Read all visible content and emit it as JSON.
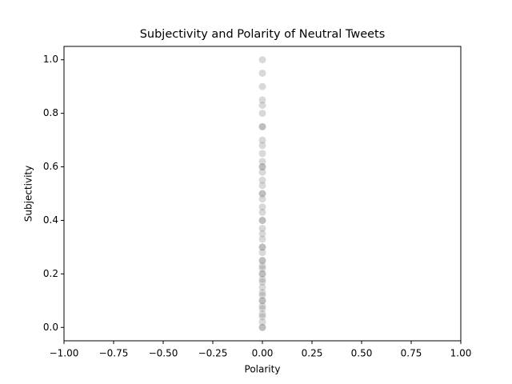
{
  "chart_data": {
    "type": "scatter",
    "title": "Subjectivity and Polarity of Neutral Tweets",
    "x_label": "Polarity",
    "y_label": "Subjectivity",
    "color": "#808080",
    "alpha": 0.3,
    "x": [
      0,
      0,
      0,
      0,
      0,
      0,
      0,
      0,
      0,
      0,
      0,
      0,
      0,
      0,
      0,
      0,
      0,
      0,
      0,
      0,
      0,
      0,
      0,
      0,
      0,
      0,
      0,
      0,
      0,
      0,
      0,
      0,
      0,
      0,
      0,
      0,
      0,
      0,
      0,
      0
    ],
    "y": [
      0,
      0.02,
      0.04,
      0.05,
      0.07,
      0.08,
      0.1,
      0.12,
      0.13,
      0.15,
      0.17,
      0.18,
      0.2,
      0.22,
      0.23,
      0.25,
      0.28,
      0.3,
      0.33,
      0.35,
      0.37,
      0.4,
      0.43,
      0.45,
      0.48,
      0.5,
      0.53,
      0.55,
      0.58,
      0.6,
      0.62,
      0.65,
      0.68,
      0.7,
      0.75,
      0.8,
      0.83,
      0.85,
      0.9,
      0.95
    ],
    "extra_y": [
      1.0,
      0.75,
      0.6,
      0.5,
      0.4,
      0.3,
      0.2,
      0.1,
      0.0,
      0.25
    ],
    "xlim": [
      -1.0,
      1.0
    ],
    "ylim": [
      -0.05,
      1.05
    ],
    "xticks": [
      {
        "value": -1.0,
        "label": "−1.00"
      },
      {
        "value": -0.75,
        "label": "−0.75"
      },
      {
        "value": -0.5,
        "label": "−0.50"
      },
      {
        "value": -0.25,
        "label": "−0.25"
      },
      {
        "value": 0,
        "label": "0.00"
      },
      {
        "value": 0.25,
        "label": "0.25"
      },
      {
        "value": 0.5,
        "label": "0.50"
      },
      {
        "value": 0.75,
        "label": "0.75"
      },
      {
        "value": 1.0,
        "label": "1.00"
      }
    ],
    "yticks": [
      {
        "value": 0,
        "label": "0.0"
      },
      {
        "value": 0.2,
        "label": "0.2"
      },
      {
        "value": 0.4,
        "label": "0.4"
      },
      {
        "value": 0.6,
        "label": "0.6"
      },
      {
        "value": 0.8,
        "label": "0.8"
      },
      {
        "value": 1.0,
        "label": "1.0"
      }
    ]
  }
}
